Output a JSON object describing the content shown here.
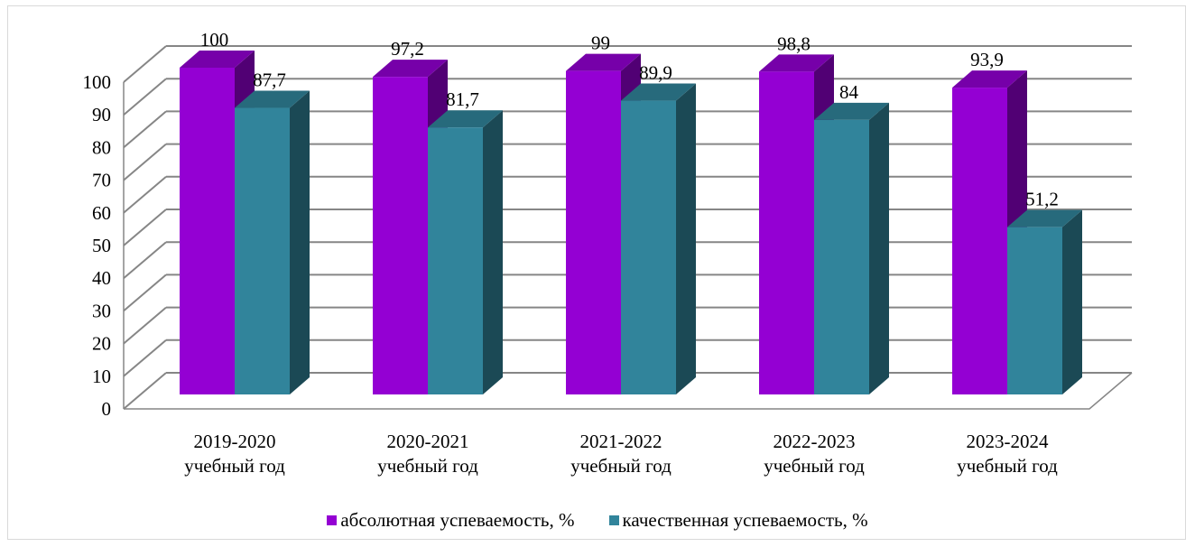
{
  "chart_data": {
    "type": "bar",
    "categories": [
      [
        "2019-2020",
        "учебный год"
      ],
      [
        "2020-2021",
        "учебный год"
      ],
      [
        "2021-2022",
        "учебный год"
      ],
      [
        "2022-2023",
        "учебный год"
      ],
      [
        "2023-2024",
        "учебный год"
      ]
    ],
    "series": [
      {
        "name": "абсолютная успеваемость, %",
        "values": [
          100,
          97.2,
          99,
          98.8,
          93.9
        ],
        "labels": [
          "100",
          "97,2",
          "99",
          "98,8",
          "93,9"
        ],
        "color": "#9400d3"
      },
      {
        "name": "качественная успеваемость, %",
        "values": [
          87.7,
          81.7,
          89.9,
          84,
          51.2
        ],
        "labels": [
          "87,7",
          "81,7",
          "89,9",
          "84",
          "51,2"
        ],
        "color": "#31849b"
      }
    ],
    "ylim": [
      0,
      100
    ],
    "yticks": [
      0,
      10,
      20,
      30,
      40,
      50,
      60,
      70,
      80,
      90,
      100
    ],
    "grid": true,
    "three_d": true,
    "legend_position": "bottom"
  }
}
